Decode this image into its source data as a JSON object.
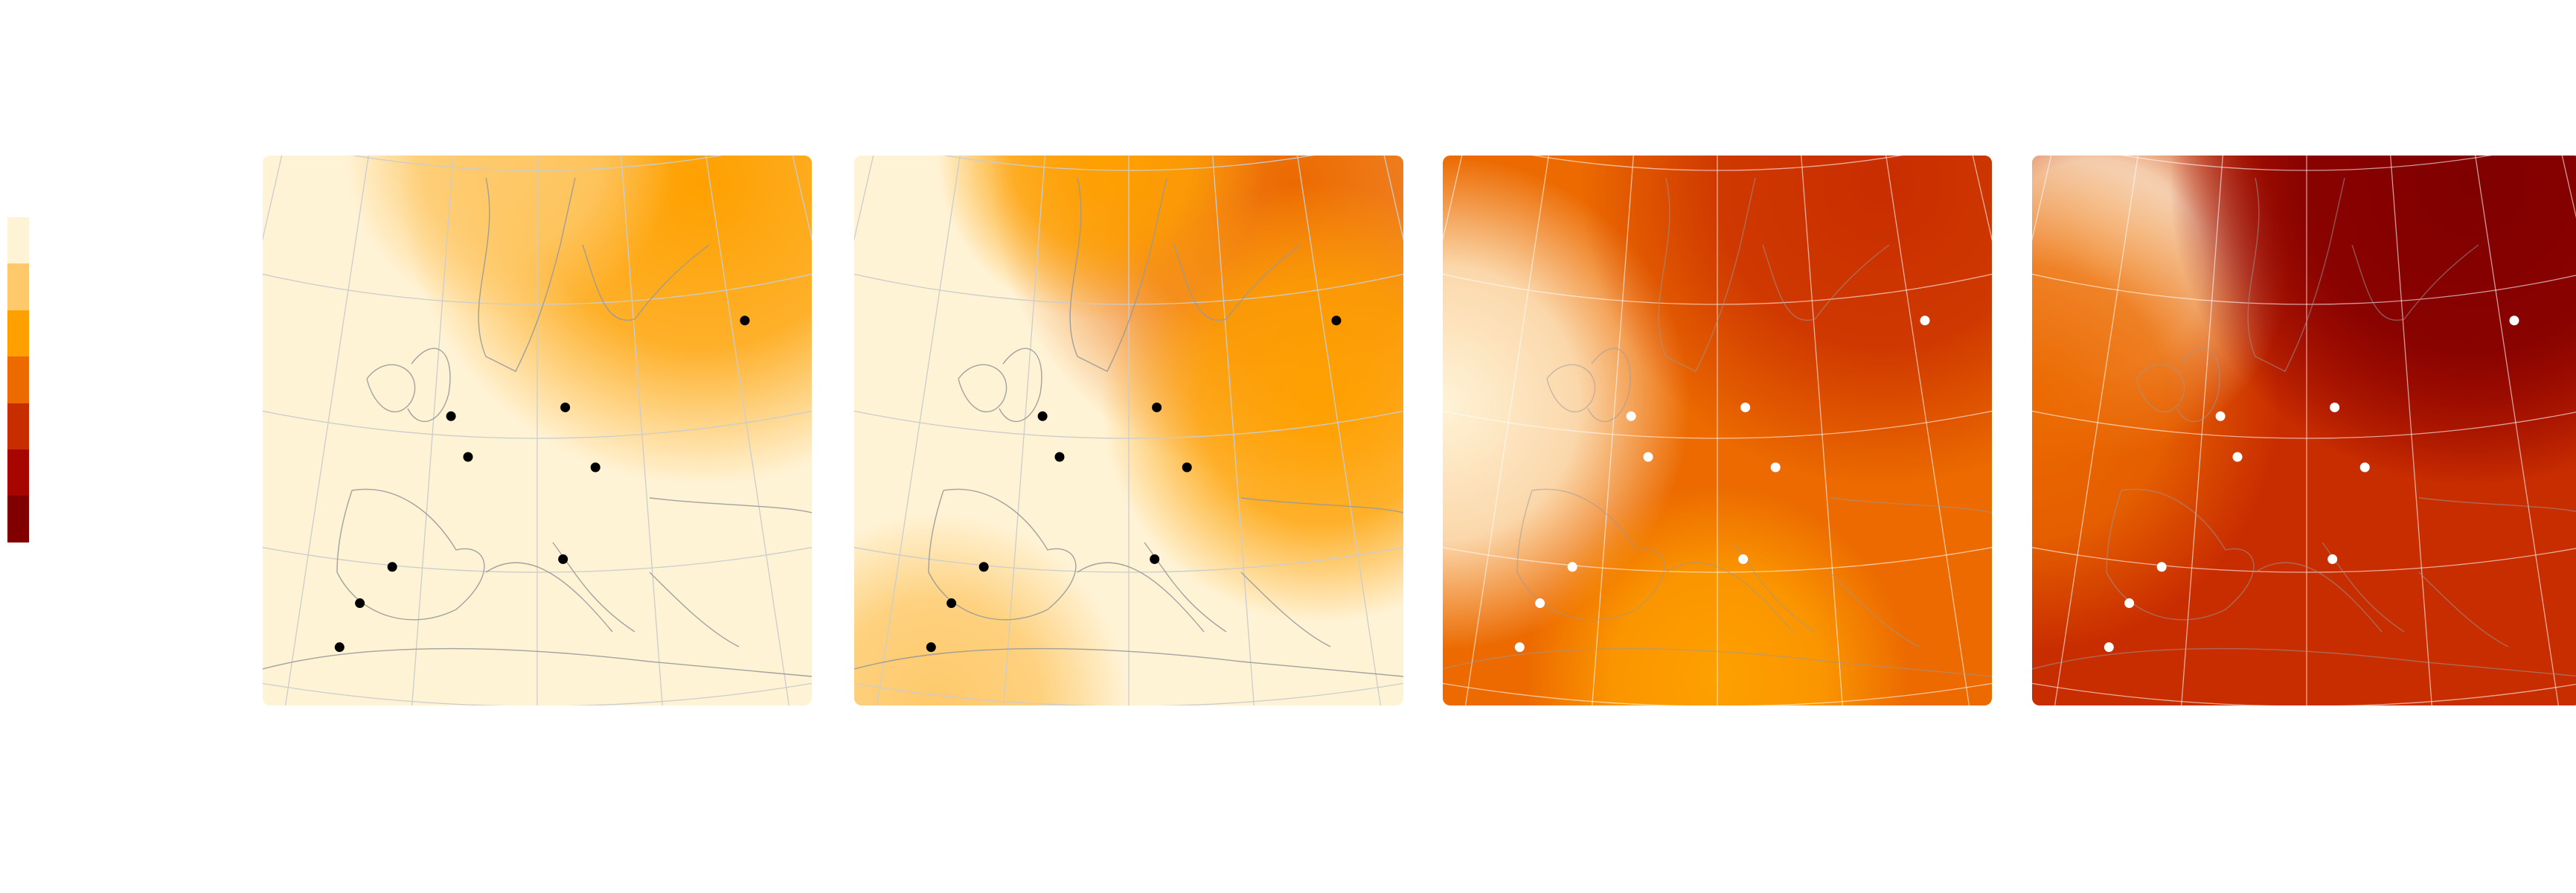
{
  "legend": {
    "colors": [
      "#fff3d6",
      "#fec96a",
      "#fea000",
      "#ec6a00",
      "#c82d00",
      "#a70500",
      "#800000"
    ]
  },
  "panels": [
    {
      "base": "#fff3d6",
      "marker_color": "#000000",
      "blobs": [
        {
          "color": "#fea000",
          "where": "northeast"
        },
        {
          "color": "#fec96a",
          "where": "north"
        }
      ]
    },
    {
      "base": "#fff3d6",
      "marker_color": "#000000",
      "blobs": [
        {
          "color": "#ec6a00",
          "where": "northeast"
        },
        {
          "color": "#fea000",
          "where": "east"
        },
        {
          "color": "#fec96a",
          "where": "southwest"
        },
        {
          "color": "#fea000",
          "where": "north"
        }
      ]
    },
    {
      "base": "#ec6a00",
      "marker_color": "#ffffff",
      "blobs": [
        {
          "color": "#fff3d6",
          "where": "west"
        },
        {
          "color": "#c82d00",
          "where": "northeast"
        },
        {
          "color": "#fea000",
          "where": "south"
        }
      ]
    },
    {
      "base": "#c82d00",
      "marker_color": "#ffffff",
      "blobs": [
        {
          "color": "#fff3d6",
          "where": "northwest"
        },
        {
          "color": "#a70500",
          "where": "northeast"
        },
        {
          "color": "#ec6a00",
          "where": "west"
        },
        {
          "color": "#800000",
          "where": "northeast"
        }
      ]
    }
  ],
  "graticule_color": "#cccccc",
  "border_color": "#999999"
}
